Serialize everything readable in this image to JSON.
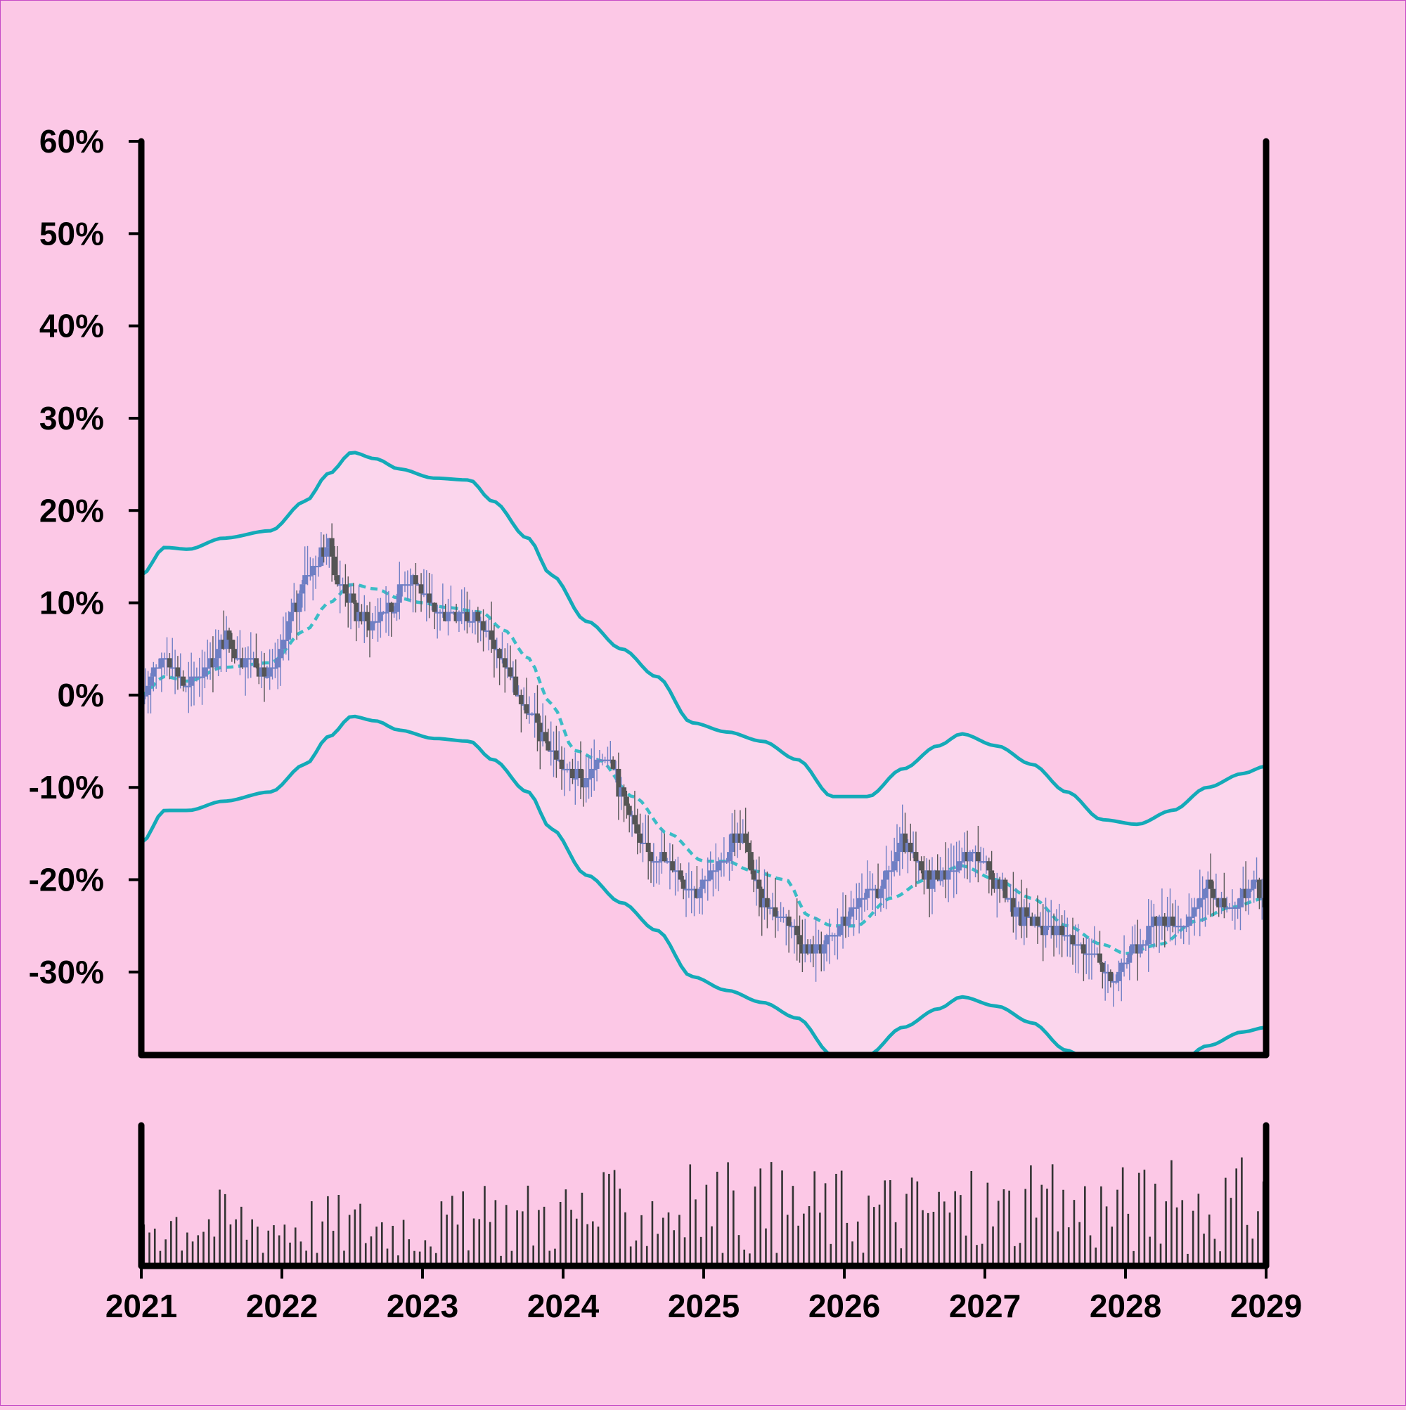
{
  "chart_data": {
    "type": "candlestick",
    "title": "",
    "xlabel": "",
    "ylabel": "",
    "x_ticks": [
      "2021",
      "2022",
      "2023",
      "2024",
      "2025",
      "2026",
      "2027",
      "2028",
      "2029"
    ],
    "y_ticks": [
      "60%",
      "50%",
      "40%",
      "30%",
      "20%",
      "10%",
      "0%",
      "-10%",
      "-20%",
      "-30%"
    ],
    "xlim": [
      "2021-01",
      "2029-01"
    ],
    "ylim": [
      -39,
      60
    ],
    "grid": false,
    "legend": "none",
    "colors": {
      "background": "#fcc8e6",
      "band_fill": "#fbd6ed",
      "band_line": "#14aab8",
      "mid_line": "#3bbcc6",
      "candle_up": "#6f7fc4",
      "candle_down": "#555555",
      "volume": "#333333",
      "axis": "#000000"
    },
    "close_anchors": [
      [
        "2021-01",
        -1
      ],
      [
        "2021-02",
        3
      ],
      [
        "2021-03",
        4
      ],
      [
        "2021-05",
        1
      ],
      [
        "2021-07",
        4
      ],
      [
        "2021-08",
        6
      ],
      [
        "2021-10",
        4
      ],
      [
        "2021-12",
        2
      ],
      [
        "2022-02",
        9
      ],
      [
        "2022-03",
        13
      ],
      [
        "2022-05",
        16
      ],
      [
        "2022-06",
        12
      ],
      [
        "2022-08",
        8
      ],
      [
        "2022-10",
        9
      ],
      [
        "2022-12",
        13
      ],
      [
        "2023-02",
        9
      ],
      [
        "2023-04",
        9
      ],
      [
        "2023-06",
        8
      ],
      [
        "2023-08",
        3
      ],
      [
        "2023-10",
        -2
      ],
      [
        "2023-12",
        -6
      ],
      [
        "2024-02",
        -9
      ],
      [
        "2024-03",
        -9
      ],
      [
        "2024-05",
        -6
      ],
      [
        "2024-06",
        -11
      ],
      [
        "2024-08",
        -17
      ],
      [
        "2024-10",
        -18
      ],
      [
        "2024-12",
        -21
      ],
      [
        "2025-02",
        -19
      ],
      [
        "2025-04",
        -15
      ],
      [
        "2025-06",
        -22
      ],
      [
        "2025-08",
        -24
      ],
      [
        "2025-10",
        -28
      ],
      [
        "2025-12",
        -26
      ],
      [
        "2026-02",
        -23
      ],
      [
        "2026-04",
        -21
      ],
      [
        "2026-06",
        -16
      ],
      [
        "2026-08",
        -20
      ],
      [
        "2026-10",
        -19
      ],
      [
        "2026-12",
        -17
      ],
      [
        "2027-02",
        -20
      ],
      [
        "2027-04",
        -24
      ],
      [
        "2027-06",
        -25
      ],
      [
        "2027-08",
        -26
      ],
      [
        "2027-10",
        -28
      ],
      [
        "2027-12",
        -31
      ],
      [
        "2028-02",
        -27
      ],
      [
        "2028-04",
        -24
      ],
      [
        "2028-06",
        -25
      ],
      [
        "2028-08",
        -21
      ],
      [
        "2028-10",
        -23
      ],
      [
        "2028-12",
        -20
      ],
      [
        "2029-01",
        -23
      ]
    ],
    "moving_average": [
      [
        "2021-01",
        0
      ],
      [
        "2021-03",
        2
      ],
      [
        "2021-05",
        1.5
      ],
      [
        "2021-08",
        3
      ],
      [
        "2021-12",
        3.5
      ],
      [
        "2022-03",
        7
      ],
      [
        "2022-05",
        10
      ],
      [
        "2022-07",
        12
      ],
      [
        "2022-09",
        11.5
      ],
      [
        "2022-11",
        10.5
      ],
      [
        "2023-01",
        10
      ],
      [
        "2023-03",
        9.5
      ],
      [
        "2023-06",
        9
      ],
      [
        "2023-08",
        7
      ],
      [
        "2023-10",
        4
      ],
      [
        "2023-12",
        -1
      ],
      [
        "2024-02",
        -6
      ],
      [
        "2024-04",
        -7
      ],
      [
        "2024-07",
        -11
      ],
      [
        "2024-10",
        -15
      ],
      [
        "2025-01",
        -18
      ],
      [
        "2025-03",
        -18
      ],
      [
        "2025-05",
        -19
      ],
      [
        "2025-08",
        -20
      ],
      [
        "2025-10",
        -24
      ],
      [
        "2025-12",
        -25
      ],
      [
        "2026-02",
        -25
      ],
      [
        "2026-05",
        -22
      ],
      [
        "2026-08",
        -20
      ],
      [
        "2026-11",
        -18.5
      ],
      [
        "2027-02",
        -20
      ],
      [
        "2027-05",
        -22
      ],
      [
        "2027-08",
        -25
      ],
      [
        "2027-11",
        -27
      ],
      [
        "2028-01",
        -28
      ],
      [
        "2028-04",
        -27
      ],
      [
        "2028-07",
        -24.5
      ],
      [
        "2028-10",
        -23
      ],
      [
        "2029-01",
        -22
      ]
    ],
    "upper_band": [
      [
        "2021-01",
        13
      ],
      [
        "2021-03",
        16
      ],
      [
        "2021-05",
        15.8
      ],
      [
        "2021-08",
        17
      ],
      [
        "2021-12",
        17.8
      ],
      [
        "2022-03",
        21
      ],
      [
        "2022-05",
        24
      ],
      [
        "2022-07",
        26.3
      ],
      [
        "2022-09",
        25.6
      ],
      [
        "2022-11",
        24.5
      ],
      [
        "2023-02",
        23.5
      ],
      [
        "2023-05",
        23.3
      ],
      [
        "2023-07",
        21
      ],
      [
        "2023-10",
        17
      ],
      [
        "2023-12",
        13
      ],
      [
        "2024-03",
        8
      ],
      [
        "2024-06",
        5
      ],
      [
        "2024-09",
        2
      ],
      [
        "2024-12",
        -3
      ],
      [
        "2025-03",
        -4
      ],
      [
        "2025-06",
        -5
      ],
      [
        "2025-09",
        -7
      ],
      [
        "2025-12",
        -11
      ],
      [
        "2026-03",
        -11
      ],
      [
        "2026-06",
        -8
      ],
      [
        "2026-09",
        -5.5
      ],
      [
        "2026-11",
        -4.2
      ],
      [
        "2027-02",
        -5.5
      ],
      [
        "2027-05",
        -7.5
      ],
      [
        "2027-08",
        -10.5
      ],
      [
        "2027-11",
        -13.5
      ],
      [
        "2028-02",
        -14
      ],
      [
        "2028-05",
        -12.5
      ],
      [
        "2028-08",
        -10
      ],
      [
        "2028-11",
        -8.5
      ],
      [
        "2029-01",
        -7.7
      ]
    ],
    "lower_band": [
      [
        "2021-01",
        -16
      ],
      [
        "2021-03",
        -12.5
      ],
      [
        "2021-05",
        -12.5
      ],
      [
        "2021-08",
        -11.5
      ],
      [
        "2021-12",
        -10.5
      ],
      [
        "2022-03",
        -7.5
      ],
      [
        "2022-05",
        -4.5
      ],
      [
        "2022-07",
        -2.3
      ],
      [
        "2022-09",
        -2.8
      ],
      [
        "2022-11",
        -3.8
      ],
      [
        "2023-02",
        -4.7
      ],
      [
        "2023-05",
        -5
      ],
      [
        "2023-07",
        -7
      ],
      [
        "2023-10",
        -10.5
      ],
      [
        "2023-12",
        -14.5
      ],
      [
        "2024-03",
        -19.5
      ],
      [
        "2024-06",
        -22.5
      ],
      [
        "2024-09",
        -25.5
      ],
      [
        "2024-12",
        -30.5
      ],
      [
        "2025-03",
        -32
      ],
      [
        "2025-06",
        -33.3
      ],
      [
        "2025-09",
        -35
      ],
      [
        "2025-12",
        -39
      ],
      [
        "2026-03",
        -39
      ],
      [
        "2026-06",
        -36
      ],
      [
        "2026-09",
        -34
      ],
      [
        "2026-11",
        -32.7
      ],
      [
        "2027-02",
        -33.7
      ],
      [
        "2027-05",
        -35.5
      ],
      [
        "2027-08",
        -38.5
      ],
      [
        "2027-11",
        -41
      ],
      [
        "2028-02",
        -42
      ],
      [
        "2028-05",
        -40.5
      ],
      [
        "2028-08",
        -38
      ],
      [
        "2028-11",
        -36.5
      ],
      [
        "2029-01",
        -36
      ]
    ],
    "volume_level": [
      [
        "2021-01",
        0.5
      ],
      [
        "2022-01",
        0.45
      ],
      [
        "2023-01",
        0.42
      ],
      [
        "2024-01",
        0.55
      ],
      [
        "2025-01",
        0.62
      ],
      [
        "2026-01",
        0.6
      ],
      [
        "2027-01",
        0.58
      ],
      [
        "2028-01",
        0.62
      ],
      [
        "2029-01",
        0.65
      ]
    ]
  }
}
